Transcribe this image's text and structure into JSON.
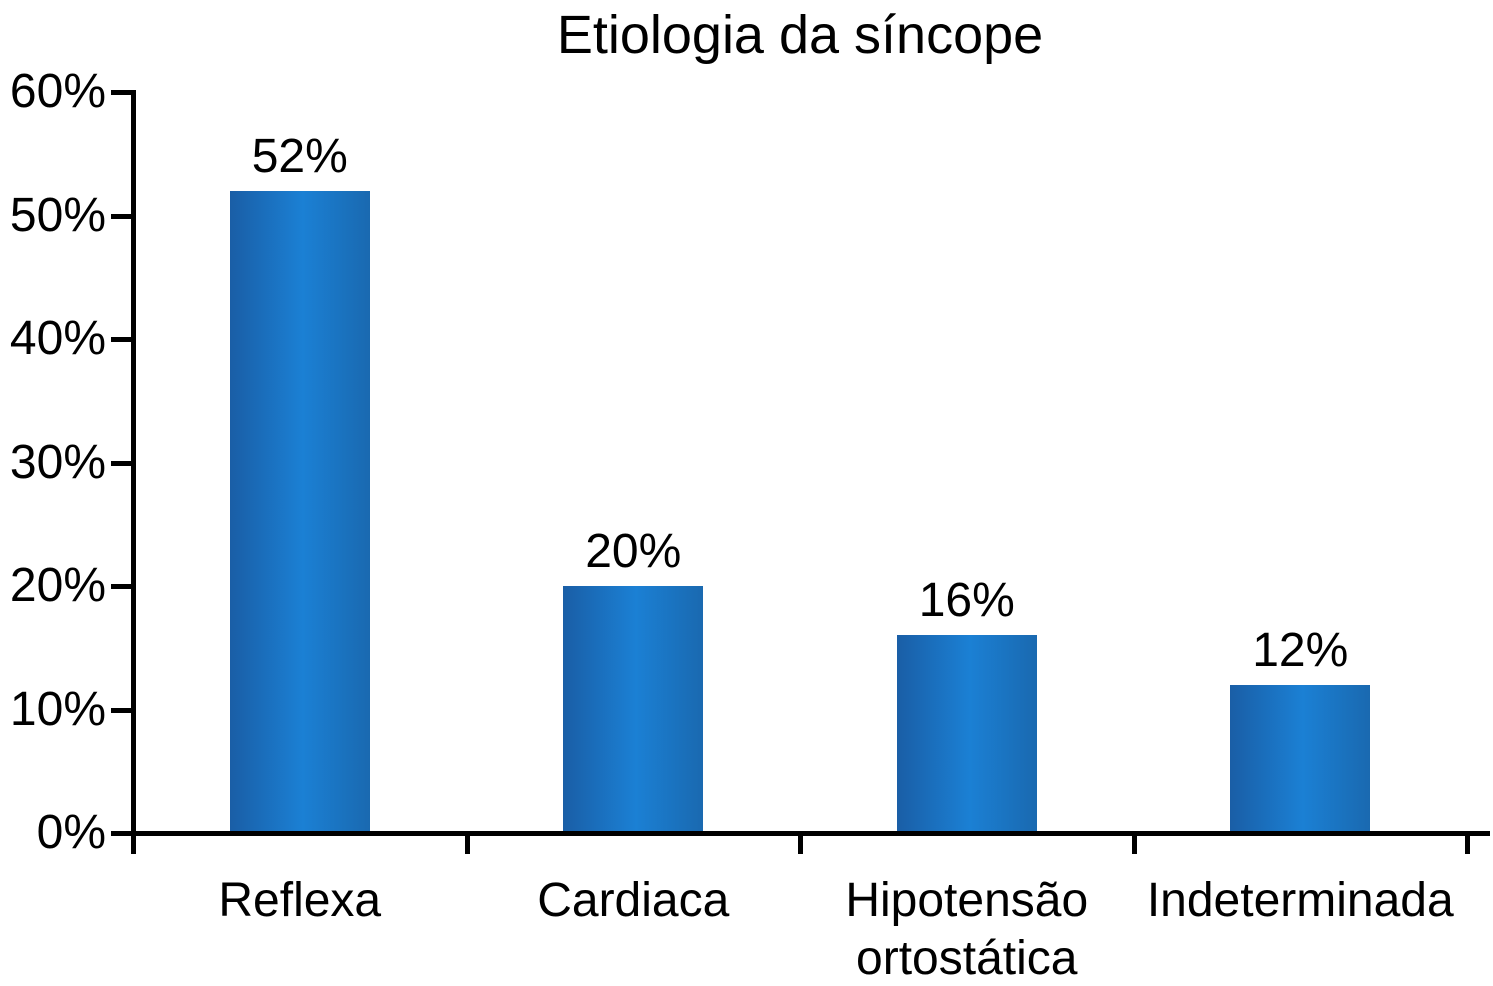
{
  "chart_data": {
    "type": "bar",
    "title": "Etiologia da síncope",
    "categories": [
      "Reflexa",
      "Cardiaca",
      "Hipotensão ortostática",
      "Indeterminada"
    ],
    "values": [
      52,
      20,
      16,
      12
    ],
    "data_labels": [
      "52%",
      "20%",
      "16%",
      "12%"
    ],
    "yticks": [
      "0%",
      "10%",
      "20%",
      "30%",
      "40%",
      "50%",
      "60%"
    ],
    "ylim": [
      0,
      60
    ],
    "xlabel": "",
    "ylabel": "",
    "grid": false,
    "legend": false,
    "background": "#ffffff",
    "text_color": "#000000",
    "axis_color": "#000000",
    "bar_gradient": [
      "#1a5ea6",
      "#1b80d4",
      "#1a69b0"
    ]
  }
}
